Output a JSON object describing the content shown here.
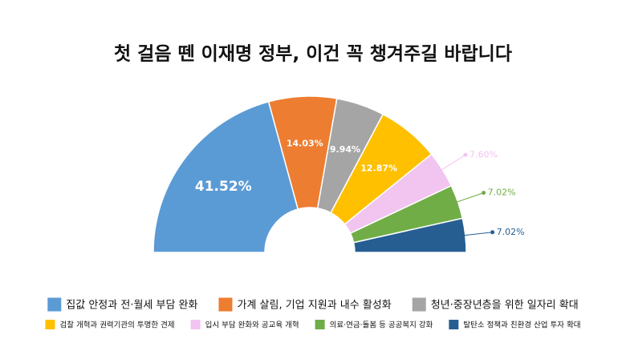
{
  "chart_data": {
    "type": "halfdonut",
    "title": "첫 걸음 뗀 이재명 정부, 이건 꼭 챙겨주길 바랍니다",
    "categories": [
      "집값 안정과 전·월세 부담 완화",
      "가계 살림, 기업 지원과 내수 활성화",
      "청년·중장년층을 위한 일자리 확대",
      "검찰 개혁과 권력기관의 투명한 견제",
      "입시 부담 완화와 공교육 개혁",
      "의료·연금·돌봄 등 공공복지 강화",
      "탈탄소 정책과 친환경 산업 투자 확대"
    ],
    "values": [
      41.52,
      14.03,
      9.94,
      12.87,
      7.6,
      7.02,
      7.02
    ],
    "value_labels": [
      "41.52%",
      "14.03%",
      "9.94%",
      "12.87%",
      "7.60%",
      "7.02%",
      "7.02%"
    ],
    "colors": [
      "#5b9bd5",
      "#ed7d31",
      "#a5a5a5",
      "#ffc000",
      "#f2c4f0",
      "#70ad47",
      "#265e92"
    ],
    "legend": "bottom"
  }
}
